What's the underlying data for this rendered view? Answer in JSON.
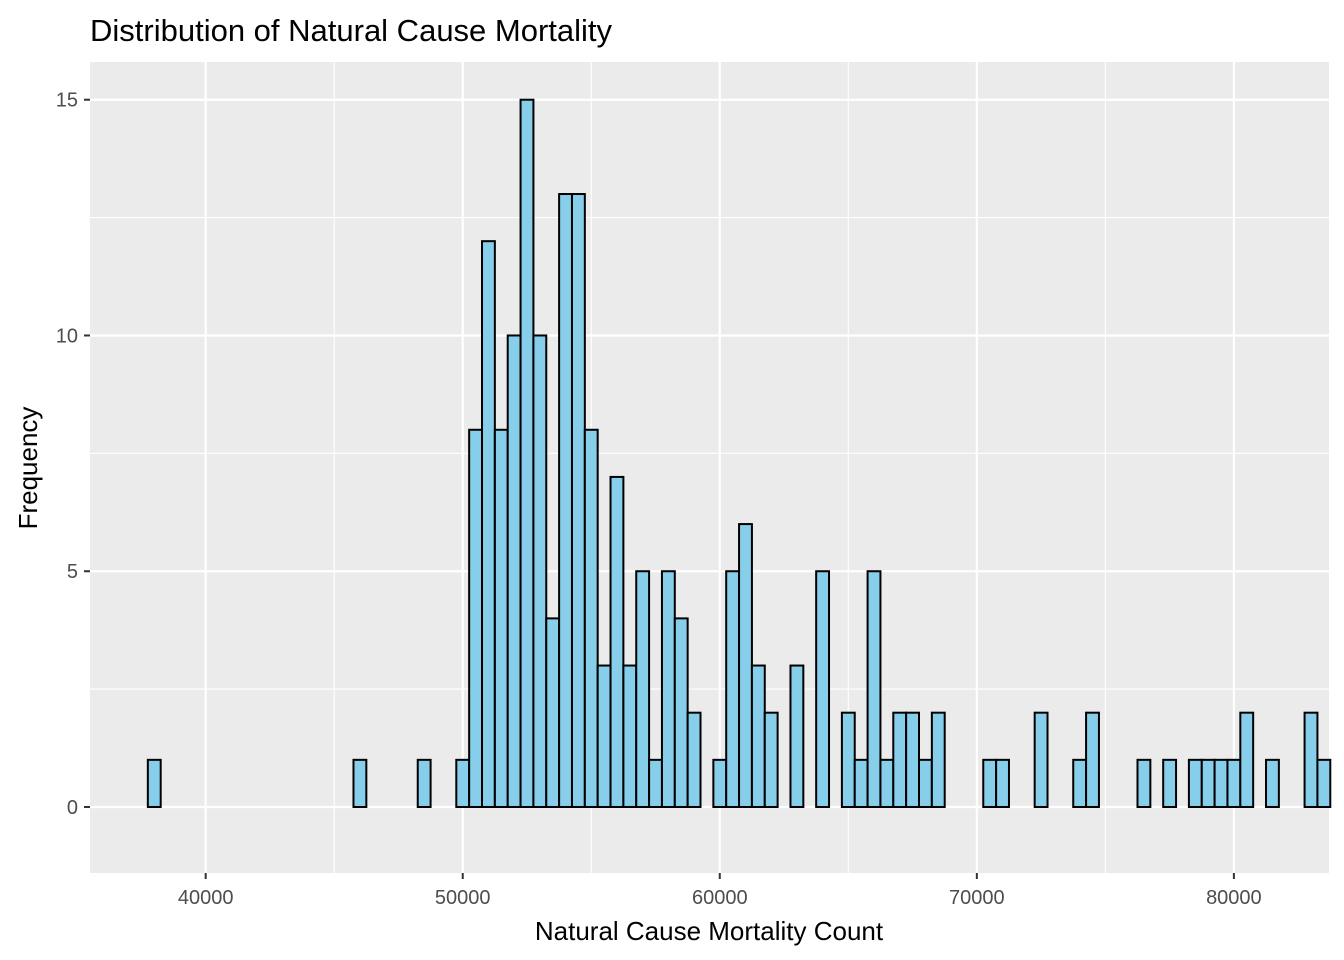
{
  "chart_data": {
    "type": "bar",
    "title": "Distribution of Natural Cause Mortality",
    "xlabel": "Natural Cause Mortality Count",
    "ylabel": "Frequency",
    "xlim": [
      35500,
      83700
    ],
    "ylim": [
      -1.4,
      15.8
    ],
    "x_ticks": [
      40000,
      50000,
      60000,
      70000,
      80000
    ],
    "x_tick_labels": [
      "40000",
      "50000",
      "60000",
      "70000",
      "80000"
    ],
    "y_ticks": [
      0,
      5,
      10,
      15
    ],
    "y_tick_labels": [
      "0",
      "5",
      "10",
      "15"
    ],
    "grid": true,
    "bin_width": 500,
    "bins_start": 37750,
    "counts": [
      1,
      0,
      0,
      0,
      0,
      0,
      0,
      0,
      0,
      0,
      0,
      0,
      0,
      0,
      0,
      0,
      1,
      0,
      0,
      0,
      0,
      1,
      0,
      0,
      1,
      8,
      12,
      8,
      10,
      15,
      10,
      4,
      13,
      13,
      8,
      3,
      7,
      3,
      5,
      1,
      5,
      4,
      2,
      0,
      1,
      5,
      6,
      3,
      2,
      0,
      3,
      0,
      5,
      0,
      2,
      1,
      5,
      1,
      2,
      2,
      1,
      2,
      0,
      0,
      0,
      1,
      1,
      0,
      0,
      2,
      0,
      0,
      1,
      2,
      0,
      0,
      0,
      1,
      0,
      1,
      0,
      1,
      1,
      1,
      1,
      2,
      0,
      1,
      0,
      0,
      2,
      1
    ],
    "colors": {
      "bar_fill": "#87ceeb",
      "bar_stroke": "#000000",
      "panel_bg": "#ebebeb",
      "grid_major": "#ffffff",
      "tick_text": "#4d4d4d",
      "tick_mark": "#333333"
    }
  }
}
